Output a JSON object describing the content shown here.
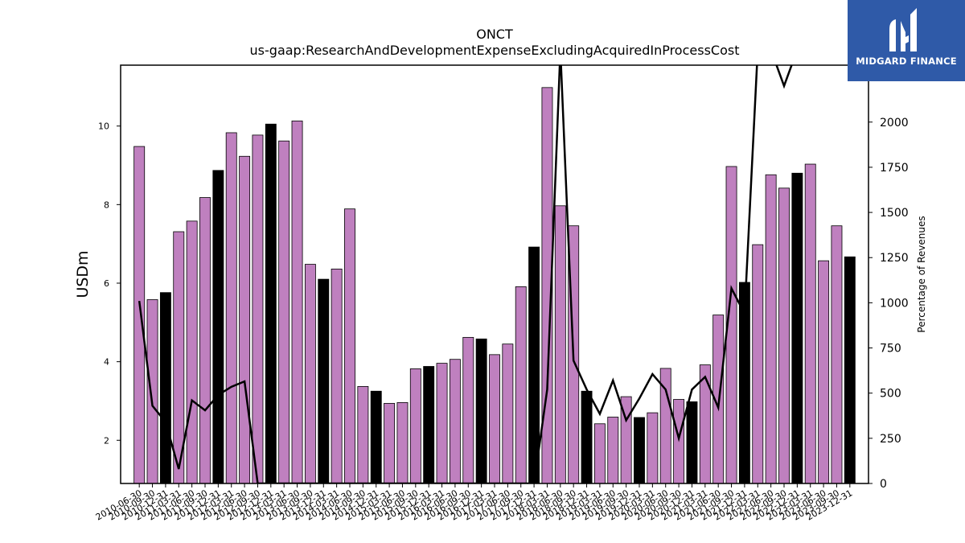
{
  "brand": {
    "name": "MIDGARD FINANCE",
    "logo_icon": "midgard-logo-icon",
    "background_color": "#2f5aa8"
  },
  "chart_data": {
    "type": "bar",
    "title": "ONCT",
    "subtitle": "us-gaap:ResearchAndDevelopmentExpenseExcludingAcquiredInProcessCost",
    "ylabel": "USDm",
    "y2label": "Percentage of Revenues",
    "ylim": [
      0.9,
      11.55
    ],
    "y2lim": [
      0,
      2315
    ],
    "yticks": [
      2,
      4,
      6,
      8,
      10
    ],
    "y2ticks": [
      0,
      250,
      500,
      750,
      1000,
      1250,
      1500,
      1750,
      2000
    ],
    "bar_color": "#bf80bf",
    "highlight_color": "#000000",
    "line_color": "#000000",
    "categories": [
      "2010-06-30",
      "2010-09-30",
      "2010-12-31",
      "2011-03-31",
      "2011-06-30",
      "2011-09-30",
      "2011-12-31",
      "2012-03-31",
      "2012-06-30",
      "2012-09-30",
      "2012-12-31",
      "2013-03-31",
      "2013-06-30",
      "2013-09-30",
      "2013-12-31",
      "2014-03-31",
      "2014-06-30",
      "2014-09-30",
      "2014-12-31",
      "2015-03-31",
      "2015-06-30",
      "2015-09-30",
      "2015-12-31",
      "2016-03-31",
      "2016-06-30",
      "2016-09-30",
      "2016-12-31",
      "2017-03-31",
      "2017-06-30",
      "2017-09-30",
      "2017-12-31",
      "2018-03-31",
      "2018-06-30",
      "2018-09-30",
      "2018-12-31",
      "2019-03-31",
      "2019-06-30",
      "2019-09-30",
      "2019-12-31",
      "2020-03-31",
      "2020-06-30",
      "2020-09-30",
      "2020-12-31",
      "2021-03-31",
      "2021-06-30",
      "2021-09-30",
      "2021-12-31",
      "2022-03-31",
      "2022-06-30",
      "2022-09-30",
      "2022-12-31",
      "2023-03-31",
      "2023-06-30",
      "2023-09-30",
      "2023-12-31"
    ],
    "values": [
      9.48,
      5.58,
      5.76,
      7.31,
      7.58,
      8.18,
      8.87,
      9.83,
      9.23,
      9.77,
      10.05,
      9.62,
      10.13,
      6.48,
      6.1,
      6.36,
      7.89,
      3.37,
      3.25,
      2.94,
      2.96,
      3.82,
      3.88,
      3.96,
      4.06,
      4.62,
      4.58,
      4.18,
      4.45,
      5.91,
      6.92,
      10.98,
      7.97,
      7.46,
      3.25,
      2.42,
      2.59,
      3.11,
      2.58,
      2.7,
      3.83,
      3.04,
      2.98,
      3.92,
      5.19,
      8.97,
      6.02,
      6.98,
      8.76,
      8.42,
      8.8,
      9.03,
      6.57,
      7.46,
      6.67
    ],
    "highlighted": [
      false,
      false,
      true,
      false,
      false,
      false,
      true,
      false,
      false,
      false,
      true,
      false,
      false,
      false,
      true,
      false,
      false,
      false,
      true,
      false,
      false,
      false,
      true,
      false,
      false,
      false,
      true,
      false,
      false,
      false,
      true,
      false,
      false,
      false,
      true,
      false,
      false,
      false,
      true,
      false,
      false,
      false,
      true,
      false,
      false,
      false,
      true,
      false,
      false,
      false,
      true,
      false,
      false,
      false,
      true
    ],
    "pct_of_revenues": [
      1010,
      430,
      340,
      80,
      460,
      405,
      490,
      535,
      565,
      0,
      0,
      0,
      0,
      0,
      0,
      0,
      0,
      0,
      0,
      0,
      0,
      0,
      0,
      0,
      0,
      0,
      0,
      0,
      0,
      0,
      0,
      520,
      2400,
      680,
      520,
      385,
      570,
      350,
      470,
      605,
      520,
      250,
      520,
      590,
      420,
      1080,
      940,
      2400,
      2400,
      2200,
      2400,
      2400,
      2400,
      2400,
      2310
    ],
    "xlabels_shown": [
      "2010-06-30",
      "2010-09-30",
      "2010-12-31",
      "2011-03-31",
      "2011-06-30",
      "2011-09-30",
      "2011-12-31",
      "2012-03-31",
      "2012-06-30",
      "2012-09-30",
      "2012-12-31",
      "2013-03-31",
      "2013-06-30",
      "2013-09-30",
      "2013-12-31",
      "2014-03-31",
      "2014-06-30",
      "2014-09-30",
      "2014-12-31",
      "2015-03-31",
      "2015-06-30",
      "2015-09-30",
      "2015-12-31",
      "2016-03-31",
      "2016-06-30",
      "2016-09-30",
      "2016-12-31",
      "2017-03-31",
      "2017-06-30",
      "2017-09-30",
      "2017-12-31",
      "2018-03-31",
      "2018-06-30",
      "2018-09-30",
      "2018-12-31",
      "2019-03-31",
      "2019-06-30",
      "2019-09-30",
      "2019-12-31",
      "2020-03-31",
      "2020-06-30",
      "2020-09-30",
      "2020-12-31",
      "2021-03-31",
      "2021-06-30",
      "2021-09-30",
      "2021-12-31",
      "2022-03-31",
      "2022-06-30",
      "2022-09-30",
      "2022-12-31",
      "2023-03-31",
      "2023-06-30",
      "2023-09-30",
      "2023-12-31"
    ]
  }
}
